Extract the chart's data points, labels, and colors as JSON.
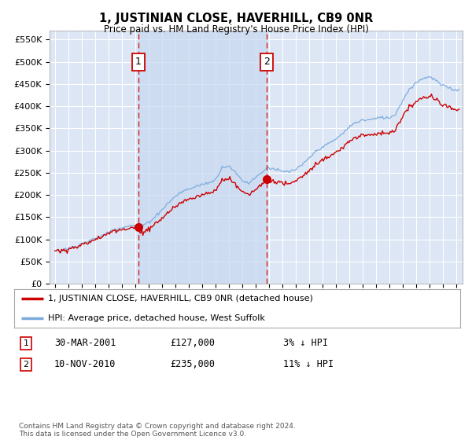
{
  "title": "1, JUSTINIAN CLOSE, HAVERHILL, CB9 0NR",
  "subtitle": "Price paid vs. HM Land Registry's House Price Index (HPI)",
  "bg_color": "#ffffff",
  "plot_bg_color": "#dce6f5",
  "grid_color": "#ffffff",
  "shade_color": "#c8d8f0",
  "red_line_color": "#cc0000",
  "blue_line_color": "#7aaadd",
  "annotation1": {
    "x_year": 2001.25,
    "y": 127000,
    "label": "1"
  },
  "annotation2": {
    "x_year": 2010.85,
    "y": 235000,
    "label": "2"
  },
  "yticks": [
    0,
    50000,
    100000,
    150000,
    200000,
    250000,
    300000,
    350000,
    400000,
    450000,
    500000,
    550000
  ],
  "ylim": [
    0,
    570000
  ],
  "xlim_start": 1994.6,
  "xlim_end": 2025.5,
  "legend_items": [
    {
      "color": "#cc0000",
      "label": "1, JUSTINIAN CLOSE, HAVERHILL, CB9 0NR (detached house)"
    },
    {
      "color": "#7aaadd",
      "label": "HPI: Average price, detached house, West Suffolk"
    }
  ],
  "table_rows": [
    {
      "num": "1",
      "date": "30-MAR-2001",
      "price": "£127,000",
      "pct": "3% ↓ HPI"
    },
    {
      "num": "2",
      "date": "10-NOV-2010",
      "price": "£235,000",
      "pct": "11% ↓ HPI"
    }
  ],
  "footnote": "Contains HM Land Registry data © Crown copyright and database right 2024.\nThis data is licensed under the Open Government Licence v3.0.",
  "dashed_line1_year": 2001.25,
  "dashed_line2_year": 2010.85,
  "sale1_year": 2001.25,
  "sale1_price": 127000,
  "sale2_year": 2010.85,
  "sale2_price": 235000
}
